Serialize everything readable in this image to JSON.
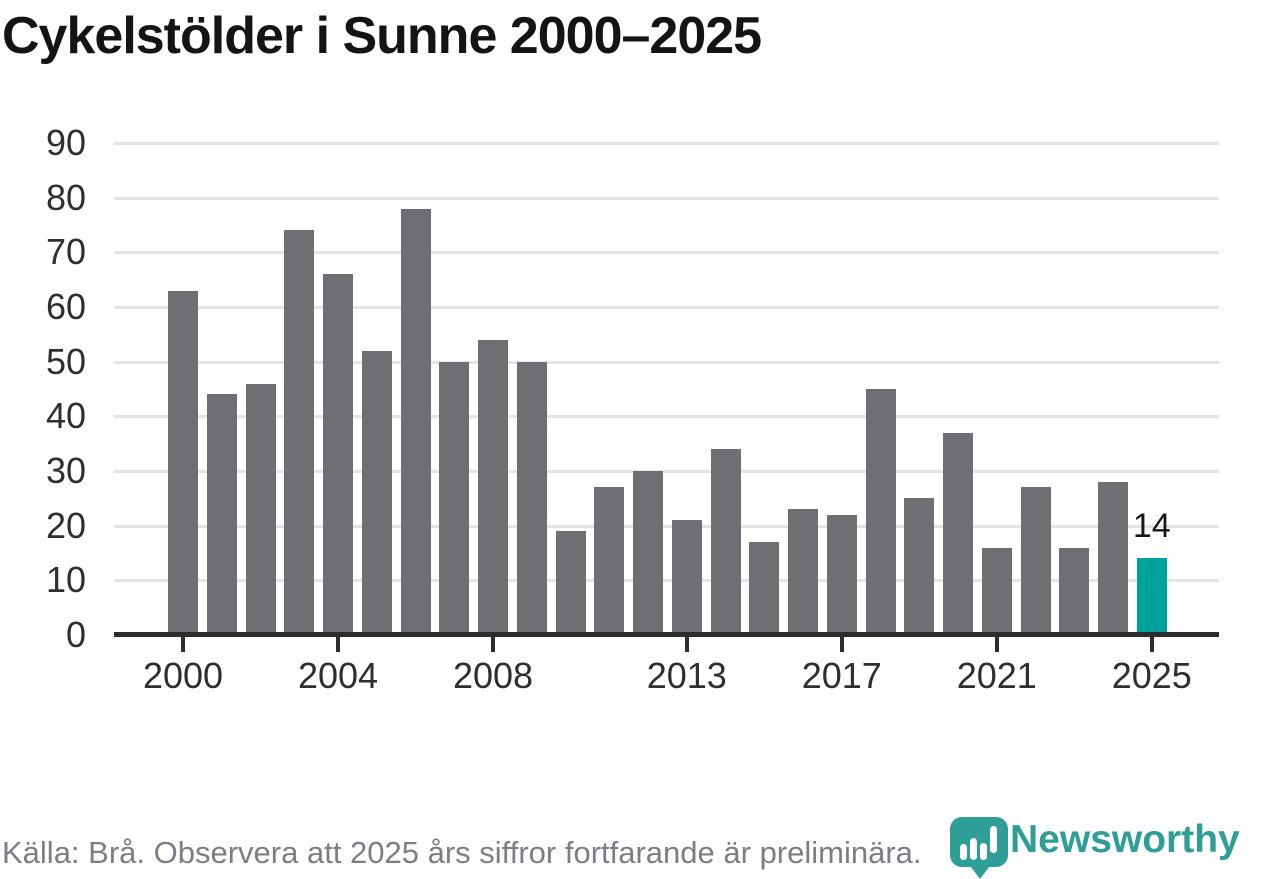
{
  "title": "Cykelstölder i Sunne 2000–2025",
  "footer": {
    "source_note": "Källa: Brå. Observera att 2025 års siffror fortfarande är preliminära."
  },
  "branding": {
    "logo_text": "Newsworthy",
    "logo_icon": "newsworthy-pin-barchart-icon",
    "logo_color": "#2f9e96"
  },
  "colors": {
    "bar_default": "#6e6e73",
    "bar_highlight": "#00a39a",
    "axis": "#2d2d30",
    "gridline": "#e4e4e4",
    "tick_text": "#2f2f33",
    "title_text": "#141414",
    "footer_text": "#7d7d85"
  },
  "chart_data": {
    "type": "bar",
    "title": "Cykelstölder i Sunne 2000–2025",
    "xlabel": "",
    "ylabel": "",
    "categories": [
      2000,
      2001,
      2002,
      2003,
      2004,
      2005,
      2006,
      2007,
      2008,
      2009,
      2010,
      2011,
      2012,
      2013,
      2014,
      2015,
      2016,
      2017,
      2018,
      2019,
      2020,
      2021,
      2022,
      2023,
      2024,
      2025
    ],
    "values": [
      63,
      44,
      46,
      74,
      66,
      52,
      78,
      50,
      54,
      50,
      19,
      27,
      30,
      21,
      34,
      17,
      23,
      22,
      45,
      25,
      37,
      16,
      27,
      16,
      28,
      14
    ],
    "ylim": [
      0,
      90
    ],
    "ytick_interval": 10,
    "yticks": [
      0,
      10,
      20,
      30,
      40,
      50,
      60,
      70,
      80,
      90
    ],
    "xticks": [
      2000,
      2004,
      2008,
      2013,
      2017,
      2021,
      2025
    ],
    "grid": true,
    "legend": false,
    "highlight_category": 2025,
    "highlight_value_label": "14"
  }
}
